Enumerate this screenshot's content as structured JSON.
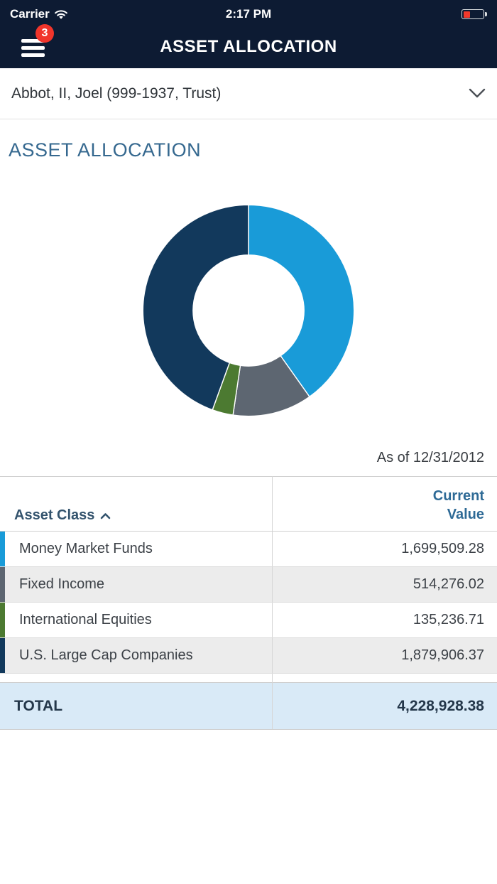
{
  "status_bar": {
    "carrier": "Carrier",
    "time": "2:17 PM"
  },
  "nav": {
    "title": "ASSET ALLOCATION",
    "badge_count": "3"
  },
  "account_selector": {
    "value": "Abbot, II, Joel (999-1937, Trust)"
  },
  "page": {
    "section_title": "ASSET ALLOCATION",
    "as_of": "As of 12/31/2012"
  },
  "chart_data": {
    "type": "pie",
    "donut": true,
    "title": "Asset Allocation",
    "start_angle_deg": 0,
    "categories": [
      "Money Market Funds",
      "Fixed Income",
      "International Equities",
      "U.S. Large Cap Companies"
    ],
    "values": [
      1699509.28,
      514276.02,
      135236.71,
      1879906.37
    ],
    "colors": [
      "#199bd8",
      "#5d6671",
      "#4c7a31",
      "#12395c"
    ],
    "total": 4228928.38,
    "as_of": "12/31/2012",
    "legend": "none"
  },
  "table": {
    "columns": [
      "Asset Class",
      "Current Value"
    ],
    "rows": [
      {
        "label": "Money Market Funds",
        "value": "1,699,509.28",
        "color": "#199bd8"
      },
      {
        "label": "Fixed Income",
        "value": "514,276.02",
        "color": "#5d6671"
      },
      {
        "label": "International Equities",
        "value": "135,236.71",
        "color": "#4c7a31"
      },
      {
        "label": "U.S. Large Cap Companies",
        "value": "1,879,906.37",
        "color": "#12395c"
      }
    ],
    "total_label": "TOTAL",
    "total_value": "4,228,928.38"
  },
  "colors": {
    "header_bg": "#0d1b33",
    "badge_red": "#f1352b",
    "section_blue": "#35688f",
    "total_row_bg": "#d9eaf7",
    "alt_row_bg": "#ececec"
  }
}
